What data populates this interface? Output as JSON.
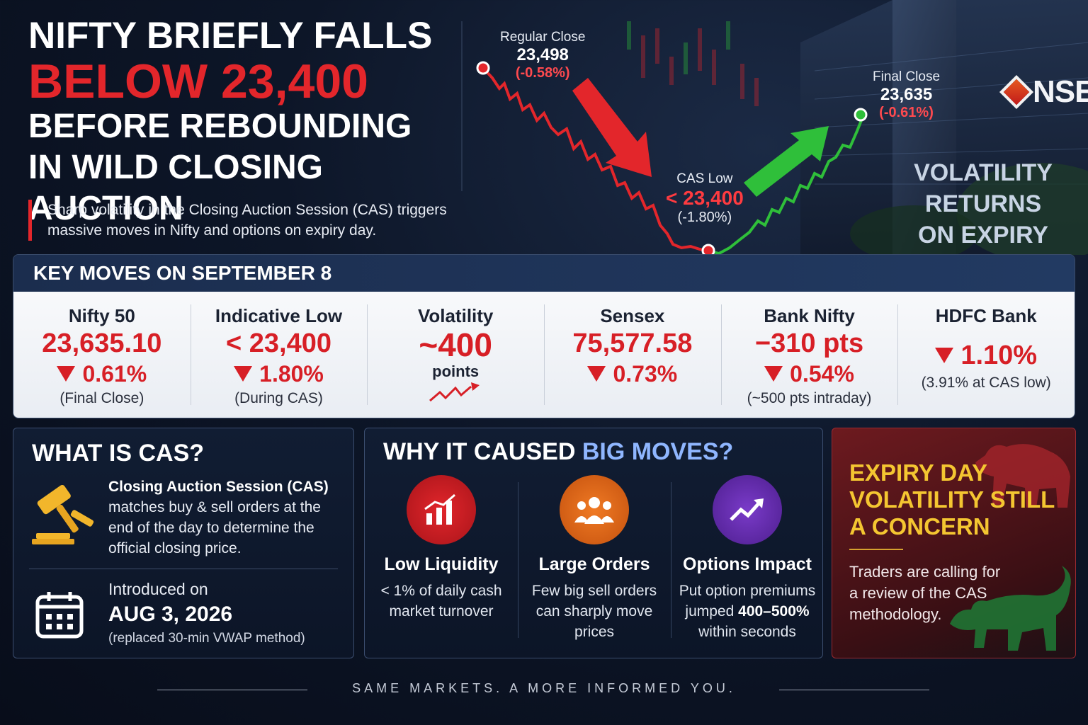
{
  "headline": {
    "line1": "NIFTY BRIEFLY FALLS",
    "line2": "BELOW 23,400",
    "line3": "BEFORE REBOUNDING",
    "line4": "IN WILD CLOSING AUCTION",
    "subtext": "Sharp volatility in the Closing Auction Session (CAS) triggers massive moves in Nifty and options on expiry day."
  },
  "chart": {
    "regular_close": {
      "title": "Regular Close",
      "value": "23,498",
      "pct": "(-0.58%)"
    },
    "cas_low": {
      "title": "CAS Low",
      "value": "< 23,400",
      "pct": "(-1.80%)"
    },
    "final_close": {
      "title": "Final Close",
      "value": "23,635",
      "pct": "(-0.61%)"
    },
    "tag": "VOLATILITY RETURNS ON EXPIRY DAY",
    "logo_text": "NSE",
    "colors": {
      "down": "#e3262b",
      "up": "#2fbf3a"
    }
  },
  "key_moves": {
    "header": "KEY MOVES ON SEPTEMBER 8",
    "cols": [
      {
        "title": "Nifty 50",
        "value": "23,635.10",
        "pct": "0.61%",
        "note": "(Final Close)"
      },
      {
        "title": "Indicative Low",
        "value": "< 23,400",
        "pct": "1.80%",
        "note": "(During CAS)"
      },
      {
        "title": "Volatility",
        "value": "~400",
        "sub": "points"
      },
      {
        "title": "Sensex",
        "value": "75,577.58",
        "pct": "0.73%"
      },
      {
        "title": "Bank Nifty",
        "value": "−310 pts",
        "pct": "0.54%",
        "note": "(~500 pts intraday)"
      },
      {
        "title": "HDFC Bank",
        "pct": "1.10%",
        "note": "(3.91% at CAS low)"
      }
    ]
  },
  "cas": {
    "title": "WHAT IS CAS?",
    "desc_bold": "Closing Auction Session (CAS)",
    "desc_rest": "matches buy & sell orders at the end of the day to determine the official closing price.",
    "intro_label": "Introduced on",
    "intro_date": "AUG 3, 2026",
    "intro_note": "(replaced 30-min VWAP method)"
  },
  "why": {
    "title_a": "WHY IT CAUSED",
    "title_b": "BIG MOVES?",
    "items": [
      {
        "icon": "bar-chart-icon",
        "title": "Low Liquidity",
        "body": "< 1% of daily cash market turnover"
      },
      {
        "icon": "people-icon",
        "title": "Large Orders",
        "body": "Few big sell orders can sharply move prices"
      },
      {
        "icon": "trend-up-icon",
        "title": "Options Impact",
        "body_a": "Put option premiums jumped",
        "body_bold": "400–500%",
        "body_b": "within seconds"
      }
    ]
  },
  "expiry": {
    "title": "EXPIRY DAY VOLATILITY STILL A CONCERN",
    "body": "Traders are calling for a review of the CAS methodology."
  },
  "footer": "SAME MARKETS. A MORE INFORMED YOU."
}
